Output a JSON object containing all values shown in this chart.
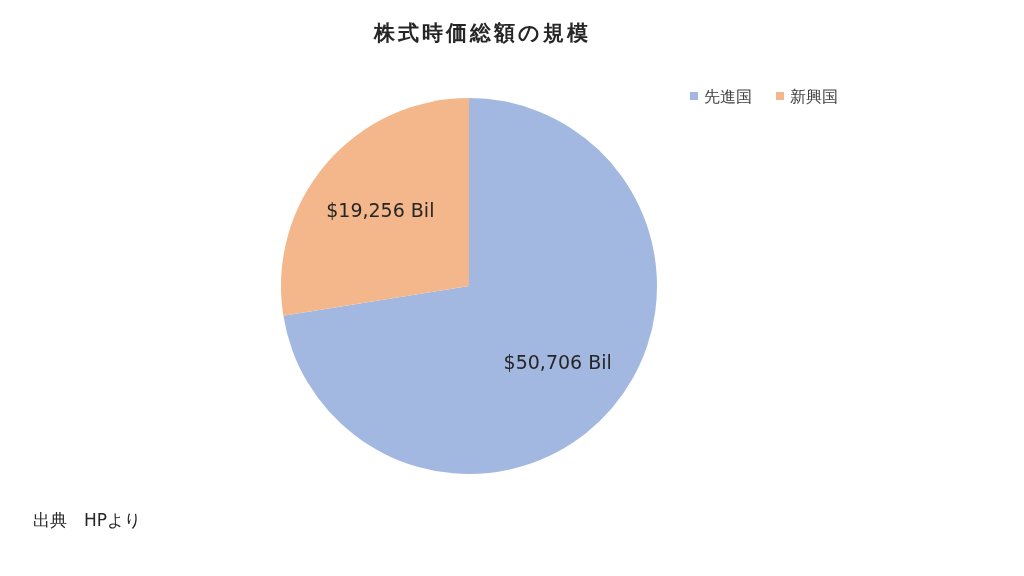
{
  "chart_data": {
    "type": "pie",
    "title": "株式時価総額の規模",
    "categories": [
      "先進国",
      "新興国"
    ],
    "values": [
      50706,
      19256
    ],
    "colors": [
      "#a3b8e1",
      "#f3b78b"
    ],
    "value_labels": [
      "$50,706 Bil",
      "$19,256 Bil"
    ],
    "legend": "top right",
    "annotations": [
      "出典　HPより"
    ]
  }
}
